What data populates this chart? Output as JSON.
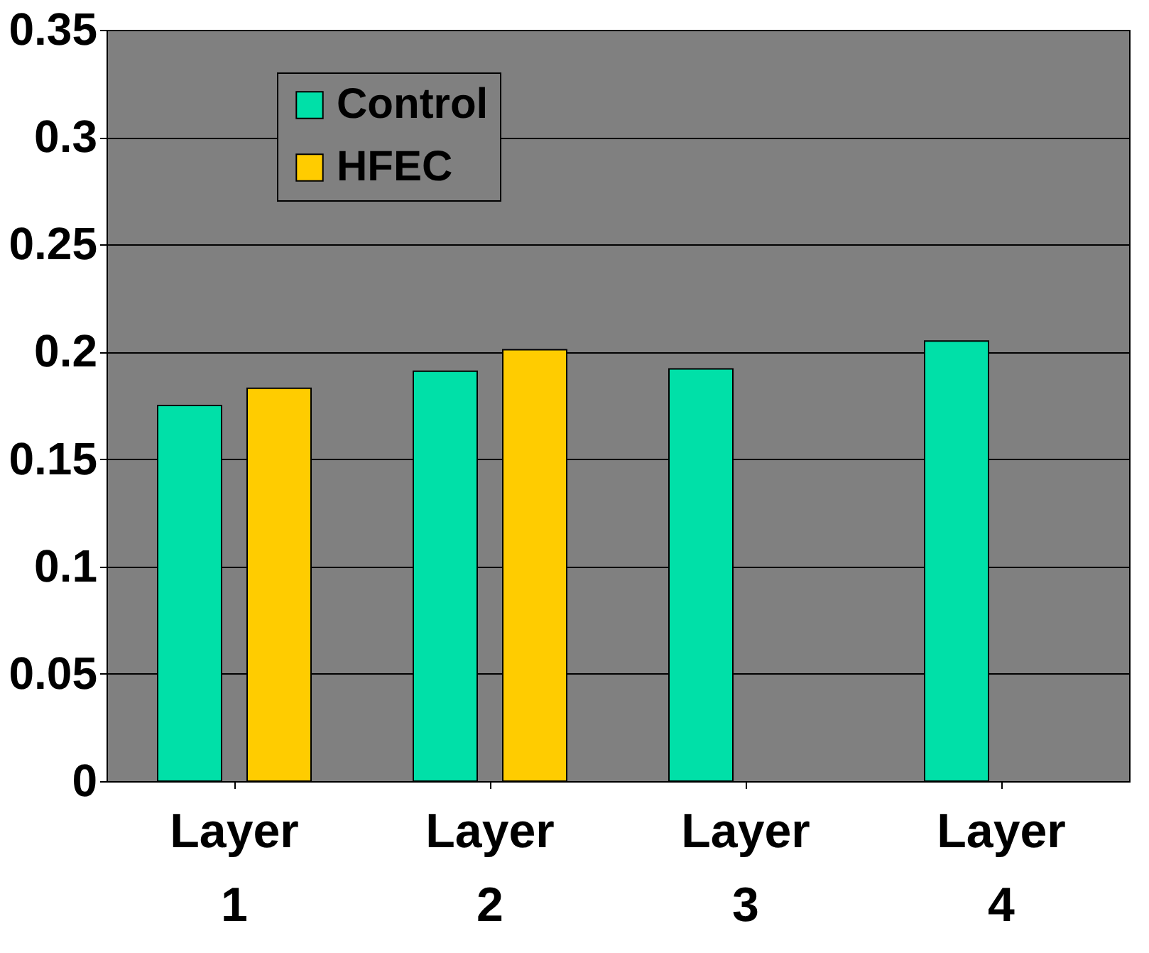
{
  "chart_data": {
    "type": "bar",
    "categories": [
      "Layer 1",
      "Layer 2",
      "Layer 3",
      "Layer 4"
    ],
    "series": [
      {
        "name": "Control",
        "color": "#00e0a8",
        "values": [
          0.175,
          0.191,
          0.192,
          0.205
        ]
      },
      {
        "name": "HFEC",
        "color": "#ffcc00",
        "values": [
          0.183,
          0.201,
          null,
          null
        ]
      }
    ],
    "ylim": [
      0,
      0.35
    ],
    "yticks": [
      0,
      0.05,
      0.1,
      0.15,
      0.2,
      0.25,
      0.3,
      0.35
    ],
    "grid": "y",
    "legend": "top left"
  }
}
